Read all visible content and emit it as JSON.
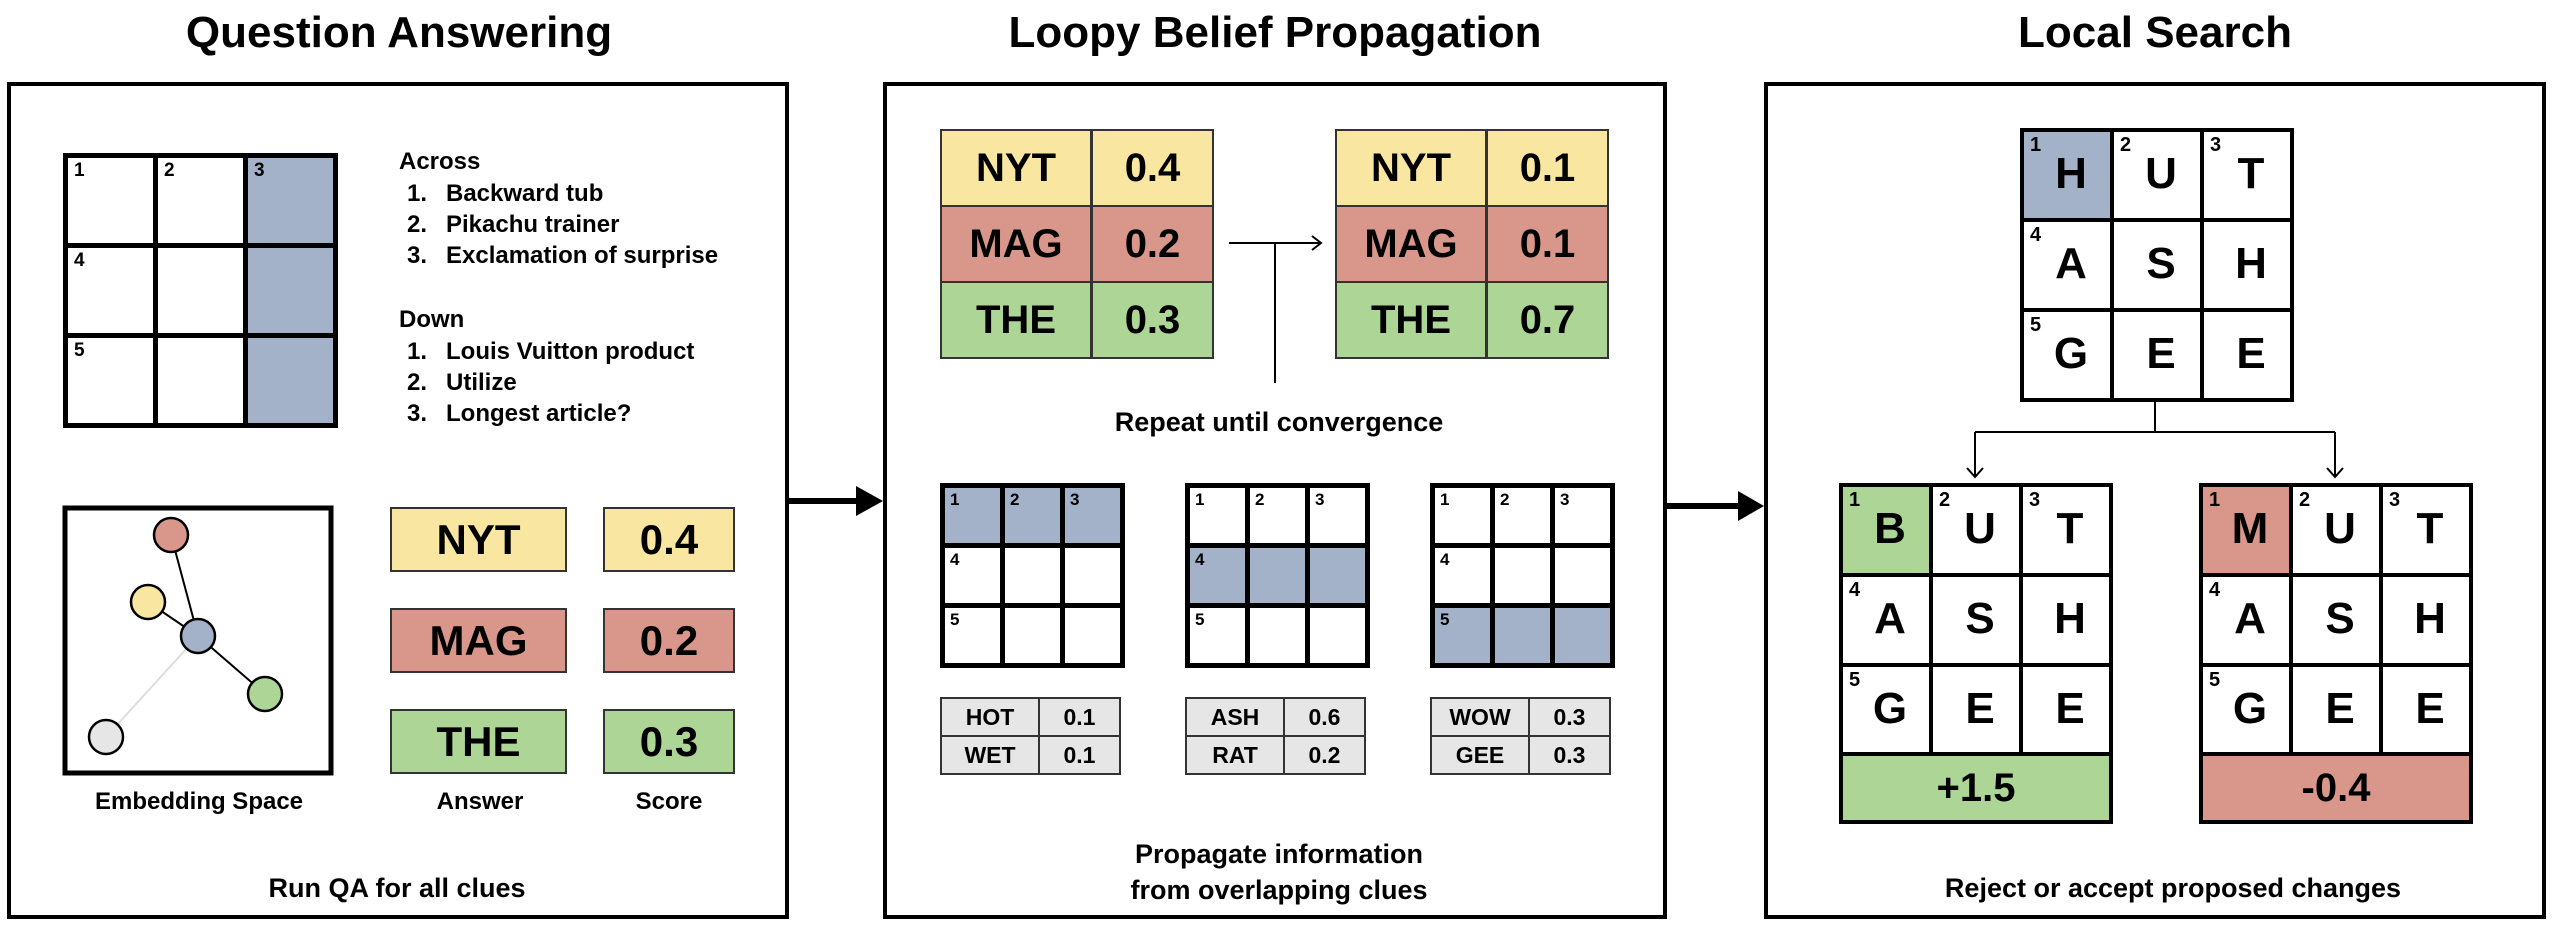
{
  "colors": {
    "yellow": "#f9e6a1",
    "red": "#d9968a",
    "green": "#acd596",
    "blue": "#a3b2c9",
    "gray": "#e6e6e6"
  },
  "qa": {
    "title": "Question Answering",
    "grid": {
      "numbers": [
        "1",
        "2",
        "3",
        "",
        "4",
        "",
        "",
        "5",
        "",
        ""
      ],
      "highlight": "column 3"
    },
    "clues": {
      "across_label": "Across",
      "across": [
        {
          "n": "1.",
          "text": "Backward tub"
        },
        {
          "n": "2.",
          "text": "Pikachu trainer"
        },
        {
          "n": "3.",
          "text": "Exclamation of surprise"
        }
      ],
      "down_label": "Down",
      "down": [
        {
          "n": "1.",
          "text": "Louis Vuitton product"
        },
        {
          "n": "2.",
          "text": "Utilize"
        },
        {
          "n": "3.",
          "text": "Longest article?"
        }
      ]
    },
    "embedding_nodes": [
      "red",
      "yellow",
      "blue",
      "green",
      "gray"
    ],
    "answers": [
      {
        "word": "NYT",
        "score": "0.4",
        "color": "yellow"
      },
      {
        "word": "MAG",
        "score": "0.2",
        "color": "red"
      },
      {
        "word": "THE",
        "score": "0.3",
        "color": "green"
      }
    ],
    "labels": {
      "embedding": "Embedding Space",
      "answer": "Answer",
      "score": "Score"
    },
    "caption": "Run QA for all clues"
  },
  "lbp": {
    "title": "Loopy Belief Propagation",
    "before": [
      {
        "word": "NYT",
        "score": "0.4",
        "color": "yellow"
      },
      {
        "word": "MAG",
        "score": "0.2",
        "color": "red"
      },
      {
        "word": "THE",
        "score": "0.3",
        "color": "green"
      }
    ],
    "after": [
      {
        "word": "NYT",
        "score": "0.1",
        "color": "yellow"
      },
      {
        "word": "MAG",
        "score": "0.1",
        "color": "red"
      },
      {
        "word": "THE",
        "score": "0.7",
        "color": "green"
      }
    ],
    "repeat_label": "Repeat until convergence",
    "subgrids": [
      {
        "highlight": "row 1",
        "candidates": [
          {
            "word": "HOT",
            "score": "0.1"
          },
          {
            "word": "WET",
            "score": "0.1"
          }
        ]
      },
      {
        "highlight": "row 2",
        "candidates": [
          {
            "word": "ASH",
            "score": "0.6"
          },
          {
            "word": "RAT",
            "score": "0.2"
          }
        ]
      },
      {
        "highlight": "row 3",
        "candidates": [
          {
            "word": "WOW",
            "score": "0.3"
          },
          {
            "word": "GEE",
            "score": "0.3"
          }
        ]
      }
    ],
    "caption_line1": "Propagate information",
    "caption_line2": "from overlapping clues"
  },
  "ls": {
    "title": "Local Search",
    "grid": {
      "letters": [
        "H",
        "U",
        "T",
        "A",
        "S",
        "H",
        "G",
        "E",
        "E"
      ],
      "highlight_color": "blue"
    },
    "proposals": [
      {
        "letters": [
          "B",
          "U",
          "T",
          "A",
          "S",
          "H",
          "G",
          "E",
          "E"
        ],
        "delta": "+1.5",
        "color": "green"
      },
      {
        "letters": [
          "M",
          "U",
          "T",
          "A",
          "S",
          "H",
          "G",
          "E",
          "E"
        ],
        "delta": "-0.4",
        "color": "red"
      }
    ],
    "caption": "Reject or accept proposed changes"
  }
}
